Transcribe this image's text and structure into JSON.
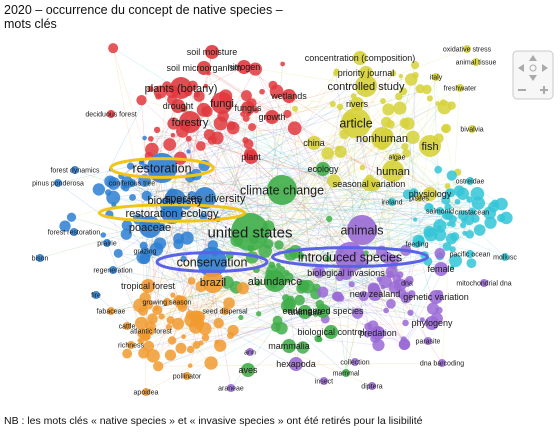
{
  "header": {
    "title": "2020 – occurrence du concept de native species – \nmots clés"
  },
  "footer": {
    "note": "NB : les mots clés « native species » et « invasive species » ont été retirés pour la lisibilité"
  },
  "colors": {
    "red": "#e0393e",
    "blue": "#2d7fd3",
    "yellow": "#d6d23a",
    "green": "#3fae49",
    "cyan": "#33c6d7",
    "purple": "#9a6ad6",
    "orange": "#f19a2f",
    "highlight_yellow": "#f2c418",
    "highlight_blue": "#5a62e8"
  },
  "controls": {
    "nav_icons": [
      "pan-up-icon",
      "pan-left-icon",
      "pan-right-icon",
      "pan-down-icon",
      "zoom-in-icon",
      "zoom-out-icon",
      "fit-icon"
    ]
  },
  "highlights": [
    {
      "label": "restoration",
      "color": "highlight_yellow"
    },
    {
      "label": "restoration ecology",
      "color": "highlight_yellow"
    },
    {
      "label": "conservation",
      "color": "highlight_blue"
    },
    {
      "label": "introduced species",
      "color": "highlight_blue"
    }
  ],
  "keywords": [
    {
      "text": "united states",
      "cluster": "green",
      "weight": 5
    },
    {
      "text": "introduced species",
      "cluster": "purple",
      "weight": 4
    },
    {
      "text": "conservation",
      "cluster": "blue",
      "weight": 4
    },
    {
      "text": "climate change",
      "cluster": "green",
      "weight": 4
    },
    {
      "text": "article",
      "cluster": "yellow",
      "weight": 4
    },
    {
      "text": "animals",
      "cluster": "purple",
      "weight": 4
    },
    {
      "text": "restoration",
      "cluster": "blue",
      "weight": 4
    },
    {
      "text": "forestry",
      "cluster": "red",
      "weight": 3
    },
    {
      "text": "nonhuman",
      "cluster": "yellow",
      "weight": 3
    },
    {
      "text": "restoration ecology",
      "cluster": "blue",
      "weight": 3
    },
    {
      "text": "species diversity",
      "cluster": "blue",
      "weight": 3
    },
    {
      "text": "poaceae",
      "cluster": "blue",
      "weight": 3
    },
    {
      "text": "fish",
      "cluster": "yellow",
      "weight": 3
    },
    {
      "text": "human",
      "cluster": "yellow",
      "weight": 3
    },
    {
      "text": "biodiversity",
      "cluster": "blue",
      "weight": 3
    },
    {
      "text": "controlled study",
      "cluster": "yellow",
      "weight": 3
    },
    {
      "text": "plants (botany)",
      "cluster": "red",
      "weight": 3
    },
    {
      "text": "fungi",
      "cluster": "red",
      "weight": 3
    },
    {
      "text": "brazil",
      "cluster": "orange",
      "weight": 3
    },
    {
      "text": "abundance",
      "cluster": "green",
      "weight": 3
    },
    {
      "text": "priority journal",
      "cluster": "yellow",
      "weight": 2
    },
    {
      "text": "concentration (composition)",
      "cluster": "yellow",
      "weight": 2
    },
    {
      "text": "soil microorganism",
      "cluster": "red",
      "weight": 2
    },
    {
      "text": "soil moisture",
      "cluster": "red",
      "weight": 2
    },
    {
      "text": "nitrogen",
      "cluster": "red",
      "weight": 2
    },
    {
      "text": "plant",
      "cluster": "red",
      "weight": 2
    },
    {
      "text": "drought",
      "cluster": "red",
      "weight": 2
    },
    {
      "text": "fungus",
      "cluster": "red",
      "weight": 2
    },
    {
      "text": "growth",
      "cluster": "red",
      "weight": 2
    },
    {
      "text": "wetlands",
      "cluster": "red",
      "weight": 2
    },
    {
      "text": "rivers",
      "cluster": "yellow",
      "weight": 2
    },
    {
      "text": "china",
      "cluster": "yellow",
      "weight": 2
    },
    {
      "text": "ecology",
      "cluster": "green",
      "weight": 2
    },
    {
      "text": "algae",
      "cluster": "yellow",
      "weight": 1
    },
    {
      "text": "seasonal variation",
      "cluster": "yellow",
      "weight": 2
    },
    {
      "text": "physiology",
      "cluster": "yellow",
      "weight": 2
    },
    {
      "text": "pisces",
      "cluster": "yellow",
      "weight": 1
    },
    {
      "text": "salmonid",
      "cluster": "cyan",
      "weight": 1
    },
    {
      "text": "crustacean",
      "cluster": "cyan",
      "weight": 1
    },
    {
      "text": "female",
      "cluster": "purple",
      "weight": 2
    },
    {
      "text": "biological invasions",
      "cluster": "purple",
      "weight": 2
    },
    {
      "text": "new zealand",
      "cluster": "purple",
      "weight": 2
    },
    {
      "text": "genetic variation",
      "cluster": "purple",
      "weight": 2
    },
    {
      "text": "phylogeny",
      "cluster": "purple",
      "weight": 2
    },
    {
      "text": "endangered species",
      "cluster": "green",
      "weight": 2
    },
    {
      "text": "biological control",
      "cluster": "green",
      "weight": 2
    },
    {
      "text": "predation",
      "cluster": "purple",
      "weight": 2
    },
    {
      "text": "mammalia",
      "cluster": "green",
      "weight": 2
    },
    {
      "text": "hexapoda",
      "cluster": "purple",
      "weight": 2
    },
    {
      "text": "aves",
      "cluster": "green",
      "weight": 2
    },
    {
      "text": "animalia",
      "cluster": "green",
      "weight": 2
    },
    {
      "text": "tropical forest",
      "cluster": "orange",
      "weight": 2
    },
    {
      "text": "regeneration",
      "cluster": "blue",
      "weight": 1
    },
    {
      "text": "growing season",
      "cluster": "orange",
      "weight": 1
    },
    {
      "text": "seed dispersal",
      "cluster": "orange",
      "weight": 1
    },
    {
      "text": "grazing",
      "cluster": "blue",
      "weight": 1
    },
    {
      "text": "prairie",
      "cluster": "blue",
      "weight": 1
    },
    {
      "text": "pinus ponderosa",
      "cluster": "blue",
      "weight": 1
    },
    {
      "text": "forest dynamics",
      "cluster": "blue",
      "weight": 1
    },
    {
      "text": "coniferous tree",
      "cluster": "blue",
      "weight": 1
    },
    {
      "text": "forest restoration",
      "cluster": "blue",
      "weight": 1
    },
    {
      "text": "bison",
      "cluster": "blue",
      "weight": 1
    },
    {
      "text": "pacific ocean",
      "cluster": "cyan",
      "weight": 1
    },
    {
      "text": "mollusc",
      "cluster": "cyan",
      "weight": 1
    },
    {
      "text": "mitochondrial dna",
      "cluster": "purple",
      "weight": 1
    },
    {
      "text": "dna",
      "cluster": "purple",
      "weight": 1
    },
    {
      "text": "pollinator",
      "cluster": "orange",
      "weight": 1
    },
    {
      "text": "insect",
      "cluster": "purple",
      "weight": 1
    },
    {
      "text": "mammal",
      "cluster": "green",
      "weight": 1
    },
    {
      "text": "diptera",
      "cluster": "purple",
      "weight": 1
    },
    {
      "text": "bivalvia",
      "cluster": "yellow",
      "weight": 1
    },
    {
      "text": "animal tissue",
      "cluster": "yellow",
      "weight": 1
    },
    {
      "text": "oxidative stress",
      "cluster": "yellow",
      "weight": 1
    },
    {
      "text": "freshwater",
      "cluster": "yellow",
      "weight": 1
    },
    {
      "text": "deciduous forest",
      "cluster": "red",
      "weight": 1
    },
    {
      "text": "cattle",
      "cluster": "orange",
      "weight": 1
    },
    {
      "text": "richness",
      "cluster": "orange",
      "weight": 1
    },
    {
      "text": "fire",
      "cluster": "blue",
      "weight": 1
    },
    {
      "text": "fabaceae",
      "cluster": "orange",
      "weight": 1
    },
    {
      "text": "atlantic forest",
      "cluster": "orange",
      "weight": 1
    },
    {
      "text": "apoidea",
      "cluster": "orange",
      "weight": 1
    },
    {
      "text": "araneae",
      "cluster": "purple",
      "weight": 1
    },
    {
      "text": "parasite",
      "cluster": "purple",
      "weight": 1
    },
    {
      "text": "dna barcoding",
      "cluster": "purple",
      "weight": 1
    },
    {
      "text": "collection",
      "cluster": "purple",
      "weight": 1
    },
    {
      "text": "ann",
      "cluster": "purple",
      "weight": 1
    },
    {
      "text": "ostreidae",
      "cluster": "cyan",
      "weight": 1
    },
    {
      "text": "feeding",
      "cluster": "cyan",
      "weight": 1
    },
    {
      "text": "ireland",
      "cluster": "cyan",
      "weight": 1
    },
    {
      "text": "italy",
      "cluster": "yellow",
      "weight": 1
    }
  ]
}
